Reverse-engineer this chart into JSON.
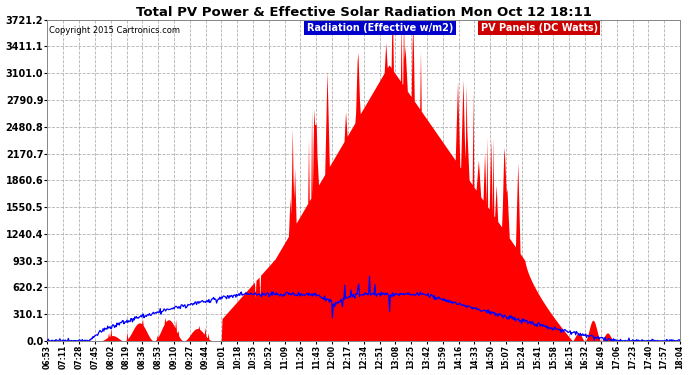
{
  "title": "Total PV Power & Effective Solar Radiation Mon Oct 12 18:11",
  "copyright": "Copyright 2015 Cartronics.com",
  "legend_radiation": "Radiation (Effective w/m2)",
  "legend_pv": "PV Panels (DC Watts)",
  "legend_radiation_bg": "#0000cc",
  "legend_pv_bg": "#cc0000",
  "bg_color": "#ffffff",
  "plot_bg_color": "#ffffff",
  "title_color": "#000000",
  "copyright_color": "#000000",
  "grid_color": "#aaaaaa",
  "ylim": [
    0.0,
    3721.2
  ],
  "yticks": [
    0.0,
    310.1,
    620.2,
    930.3,
    1240.4,
    1550.5,
    1860.6,
    2170.7,
    2480.8,
    2790.9,
    3101.0,
    3411.1,
    3721.2
  ],
  "xtick_labels": [
    "06:53",
    "07:11",
    "07:28",
    "07:45",
    "08:02",
    "08:19",
    "08:36",
    "08:53",
    "09:10",
    "09:27",
    "09:44",
    "10:01",
    "10:18",
    "10:35",
    "10:52",
    "11:09",
    "11:26",
    "11:43",
    "12:00",
    "12:17",
    "12:34",
    "12:51",
    "13:08",
    "13:25",
    "13:42",
    "13:59",
    "14:16",
    "14:33",
    "14:50",
    "15:07",
    "15:24",
    "15:41",
    "15:58",
    "16:15",
    "16:32",
    "16:49",
    "17:06",
    "17:23",
    "17:40",
    "17:57",
    "18:04"
  ],
  "pv_color": "#ff0000",
  "radiation_line_color": "#0000ff",
  "n_points": 820
}
